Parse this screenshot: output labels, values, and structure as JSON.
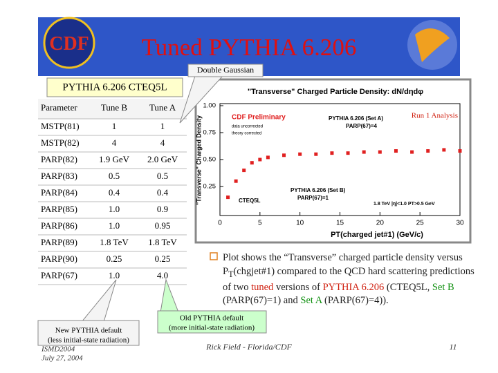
{
  "header": {
    "title": "Tuned PYTHIA 6.206",
    "logo_left": "CDF"
  },
  "callouts": {
    "double_gaussian": "Double Gaussian",
    "pythia_cteq": "PYTHIA 6.206 CTEQ5L",
    "old_default": [
      "Old PYTHIA default",
      "(more initial-state radiation)"
    ],
    "new_default": [
      "New PYTHIA default",
      "(less initial-state radiation)"
    ]
  },
  "table": {
    "columns": [
      "Parameter",
      "Tune B",
      "Tune A"
    ],
    "rows": [
      [
        "MSTP(81)",
        "1",
        "1"
      ],
      [
        "MSTP(82)",
        "4",
        "4"
      ],
      [
        "PARP(82)",
        "1.9 GeV",
        "2.0 GeV"
      ],
      [
        "PARP(83)",
        "0.5",
        "0.5"
      ],
      [
        "PARP(84)",
        "0.4",
        "0.4"
      ],
      [
        "PARP(85)",
        "1.0",
        "0.9"
      ],
      [
        "PARP(86)",
        "1.0",
        "0.95"
      ],
      [
        "PARP(89)",
        "1.8 TeV",
        "1.8 TeV"
      ],
      [
        "PARP(90)",
        "0.25",
        "0.25"
      ],
      [
        "PARP(67)",
        "1.0",
        "4.0"
      ]
    ]
  },
  "chart_data": {
    "type": "scatter",
    "title": "\"Transverse\" Charged Particle Density: dN/dηdφ",
    "x_label": "PT(charged jet#1) (GeV/c)",
    "y_label": "\"Transverse\" Charged Density",
    "annotations": [
      "CDF Preliminary",
      "data uncorrected",
      "theory corrected",
      "PYTHIA 6.206 (Set A)",
      "PARP(67)=4",
      "PYTHIA 6.206 (Set B)",
      "PARP(67)=1",
      "CTEQ5L",
      "1.8 TeV |η|<1.0 PT>0.5 GeV",
      "Run 1 Analysis"
    ],
    "x": [
      1,
      2,
      3,
      4,
      5,
      6,
      8,
      10,
      12,
      14,
      16,
      18,
      20,
      22,
      24,
      26,
      28,
      30
    ],
    "values": [
      0.15,
      0.3,
      0.4,
      0.47,
      0.5,
      0.52,
      0.54,
      0.55,
      0.55,
      0.56,
      0.56,
      0.57,
      0.57,
      0.58,
      0.57,
      0.58,
      0.59,
      0.58
    ],
    "color": "#e02020",
    "xlim": [
      0,
      30
    ],
    "ylim": [
      0,
      1.0
    ],
    "xticks": [
      0,
      5,
      10,
      15,
      20,
      25,
      30
    ],
    "yticks": [
      {
        "value": 0.25,
        "label": "0.25"
      },
      {
        "value": 0.5,
        "label": "0.50"
      },
      {
        "value": 0.75,
        "label": "0.75"
      },
      {
        "value": 1.0,
        "label": "1.00"
      }
    ]
  },
  "bullet": [
    {
      "text": "Plot shows the “Transverse” charged particle density versus P"
    },
    {
      "text": "T",
      "sub": true
    },
    {
      "text": "(chgjet#1) compared to the QCD hard scattering predictions of two "
    },
    {
      "text": "tuned",
      "color": "#d02010"
    },
    {
      "text": " versions of "
    },
    {
      "text": "PYTHIA 6.206",
      "color": "#d02010"
    },
    {
      "text": " (CTEQ5L, "
    },
    {
      "text": "Set B",
      "color": "#109010"
    },
    {
      "text": " (PARP(67)=1) and "
    },
    {
      "text": "Set A",
      "color": "#109010"
    },
    {
      "text": " (PARP(67)=4))."
    }
  ],
  "footer": {
    "conference": "ISMD2004",
    "date": "July 27, 2004",
    "author": "Rick Field - Florida/CDF",
    "page": "11"
  }
}
